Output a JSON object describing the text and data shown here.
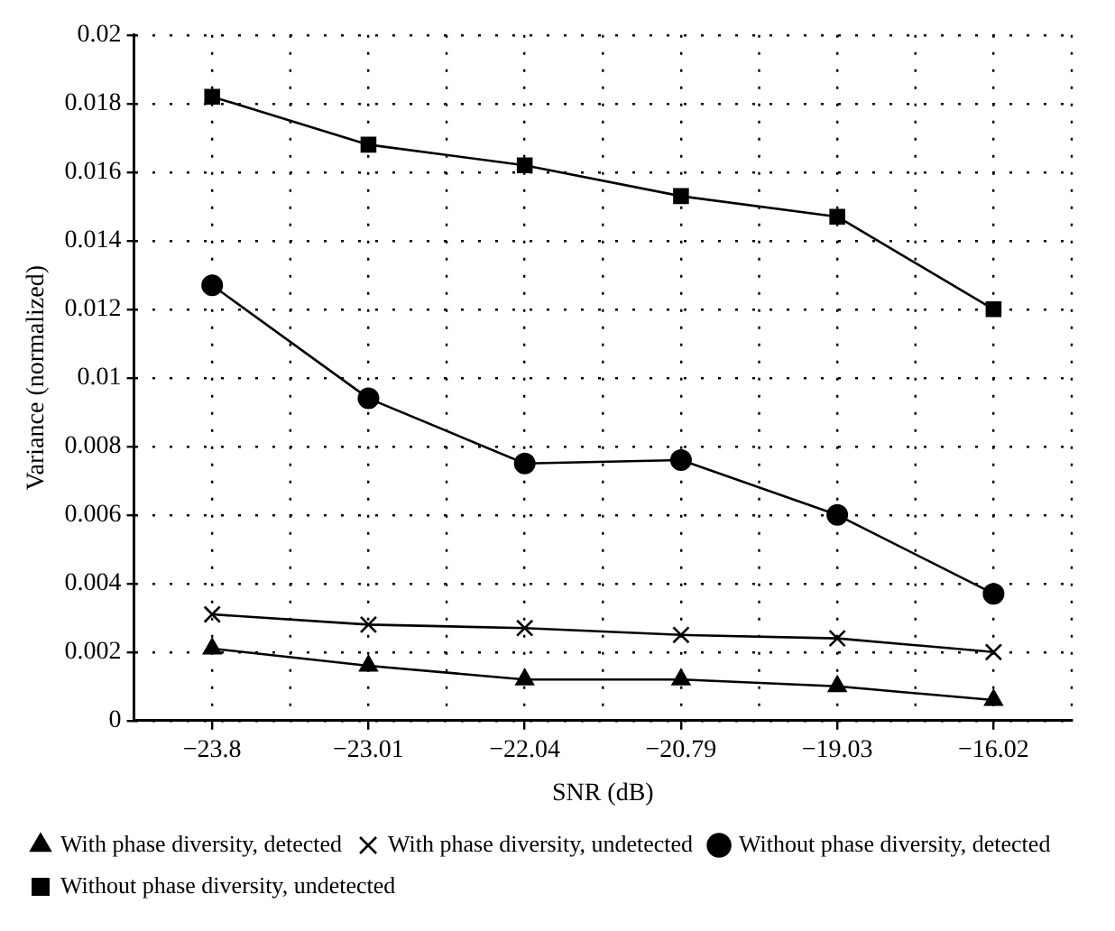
{
  "chart_data": {
    "type": "line",
    "xlabel": "SNR (dB)",
    "ylabel": "Variance (normalized)",
    "categories": [
      "−23.8",
      "−23.01",
      "−22.04",
      "−20.79",
      "−19.03",
      "−16.02"
    ],
    "series": [
      {
        "name": "With phase diversity, detected",
        "color": "#000000",
        "marker": "triangle",
        "values": [
          0.0021,
          0.0016,
          0.0012,
          0.0012,
          0.001,
          0.0006
        ]
      },
      {
        "name": "With phase diversity, undetected",
        "color": "#000000",
        "marker": "cross",
        "values": [
          0.0031,
          0.0028,
          0.0027,
          0.0025,
          0.0024,
          0.002
        ]
      },
      {
        "name": "Without phase diversity, detected",
        "color": "#000000",
        "marker": "circle",
        "values": [
          0.0127,
          0.0094,
          0.0075,
          0.0076,
          0.006,
          0.0037
        ]
      },
      {
        "name": "Without phase diversity, undetected",
        "color": "#000000",
        "marker": "square",
        "values": [
          0.0182,
          0.0168,
          0.0162,
          0.0153,
          0.0147,
          0.012
        ]
      }
    ],
    "ylim": [
      0,
      0.02
    ],
    "yticks": [
      0,
      0.002,
      0.004,
      0.006,
      0.008,
      0.01,
      0.012,
      0.014,
      0.016,
      0.018,
      0.02
    ],
    "grid": true,
    "legend": "bottom",
    "line_style": "solid"
  }
}
